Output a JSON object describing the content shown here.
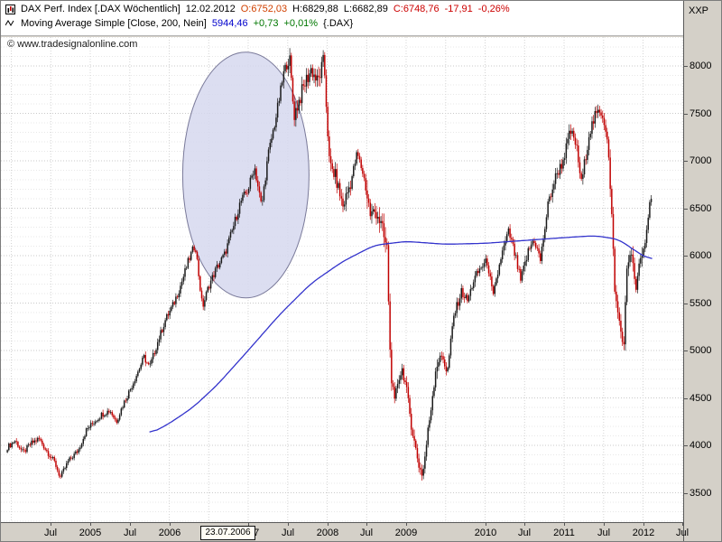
{
  "header": {
    "line1": {
      "title": "DAX Perf. Index [.DAX  Wöchentlich]",
      "date": "12.02.2012",
      "open": "O:6752,03",
      "high": "H:6829,88",
      "low": "L:6682,89",
      "close": "C:6748,76",
      "change_abs": "-17,91",
      "change_pct": "-0,26%"
    },
    "line2": {
      "title": "Moving Average Simple [Close, 200, Nein]",
      "value": "5944,46",
      "change_abs": "+0,73",
      "change_pct": "+0,01%",
      "suffix": "{.DAX}"
    },
    "copyright": "© www.tradesignalonline.com"
  },
  "colors": {
    "candle_up": "#1a1a1a",
    "candle_down": "#c00000",
    "ma_line": "#3333cc",
    "ellipse_fill": "#d6d8ee",
    "ellipse_stroke": "#7a7a9a",
    "open": "#d04000",
    "negative": "#cc0000",
    "positive": "#007700",
    "ma_value": "#0000cc",
    "grid_minor": "#e7e7e7",
    "grid_major": "#c9c9c9",
    "grid_vertical": "#d4d4d4"
  },
  "chart_data": {
    "type": "candlestick",
    "title": "DAX Perf. Index, weekly (.DAX Wöchentlich)",
    "unit_label": "XXP",
    "y_range": [
      3500,
      8000
    ],
    "grid": true,
    "last_bar": {
      "date": "12.02.2012",
      "open": 6752.03,
      "high": 6829.88,
      "low": 6682.89,
      "close": 6748.76,
      "change": -17.91,
      "change_pct": -0.26
    },
    "y_ticks": [
      8000,
      7500,
      7000,
      6500,
      6000,
      5500,
      5000,
      4500,
      4000,
      3500
    ],
    "x_ticks": [
      {
        "label": "Jul",
        "t": 2004.5
      },
      {
        "label": "2005",
        "t": 2005.0
      },
      {
        "label": "Jul",
        "t": 2005.5
      },
      {
        "label": "2006",
        "t": 2006.0
      },
      {
        "label": "2007",
        "t": 2007.0
      },
      {
        "label": "Jul",
        "t": 2007.5
      },
      {
        "label": "2008",
        "t": 2008.0
      },
      {
        "label": "Jul",
        "t": 2008.5
      },
      {
        "label": "2009",
        "t": 2009.0
      },
      {
        "label": "2010",
        "t": 2010.0
      },
      {
        "label": "Jul",
        "t": 2010.5
      },
      {
        "label": "2011",
        "t": 2011.0
      },
      {
        "label": "Jul",
        "t": 2011.5
      },
      {
        "label": "2012",
        "t": 2012.0
      },
      {
        "label": "Jul",
        "t": 2012.5
      }
    ],
    "date_marker": {
      "label": "23.07.2006",
      "t": 2006.56
    },
    "annotation_ellipse": {
      "t_center": 2006.97,
      "value_center": 6850,
      "t_radius": 0.8,
      "value_radius": 1295
    },
    "price_anchors": [
      [
        2003.95,
        3980
      ],
      [
        2004.05,
        4050
      ],
      [
        2004.15,
        3920
      ],
      [
        2004.25,
        4020
      ],
      [
        2004.35,
        4070
      ],
      [
        2004.45,
        3940
      ],
      [
        2004.55,
        3820
      ],
      [
        2004.62,
        3660
      ],
      [
        2004.72,
        3830
      ],
      [
        2004.85,
        3950
      ],
      [
        2004.95,
        4160
      ],
      [
        2005.05,
        4250
      ],
      [
        2005.15,
        4330
      ],
      [
        2005.25,
        4370
      ],
      [
        2005.33,
        4250
      ],
      [
        2005.42,
        4440
      ],
      [
        2005.5,
        4580
      ],
      [
        2005.6,
        4770
      ],
      [
        2005.68,
        4930
      ],
      [
        2005.75,
        4820
      ],
      [
        2005.85,
        5080
      ],
      [
        2005.95,
        5320
      ],
      [
        2006.05,
        5480
      ],
      [
        2006.15,
        5700
      ],
      [
        2006.25,
        5960
      ],
      [
        2006.33,
        6120
      ],
      [
        2006.42,
        5450
      ],
      [
        2006.5,
        5680
      ],
      [
        2006.6,
        5870
      ],
      [
        2006.7,
        6010
      ],
      [
        2006.8,
        6270
      ],
      [
        2006.9,
        6560
      ],
      [
        2007.0,
        6700
      ],
      [
        2007.08,
        6940
      ],
      [
        2007.17,
        6510
      ],
      [
        2007.25,
        7050
      ],
      [
        2007.35,
        7450
      ],
      [
        2007.45,
        7920
      ],
      [
        2007.52,
        8110
      ],
      [
        2007.58,
        7480
      ],
      [
        2007.65,
        7650
      ],
      [
        2007.72,
        7820
      ],
      [
        2007.8,
        7970
      ],
      [
        2007.88,
        7820
      ],
      [
        2007.96,
        8060
      ],
      [
        2008.03,
        6950
      ],
      [
        2008.1,
        6850
      ],
      [
        2008.2,
        6520
      ],
      [
        2008.3,
        6780
      ],
      [
        2008.38,
        7080
      ],
      [
        2008.46,
        6850
      ],
      [
        2008.55,
        6420
      ],
      [
        2008.63,
        6480
      ],
      [
        2008.7,
        6250
      ],
      [
        2008.76,
        6050
      ],
      [
        2008.8,
        4870
      ],
      [
        2008.85,
        4400
      ],
      [
        2008.9,
        4720
      ],
      [
        2008.96,
        4810
      ],
      [
        2009.03,
        4420
      ],
      [
        2009.1,
        4050
      ],
      [
        2009.17,
        3760
      ],
      [
        2009.21,
        3690
      ],
      [
        2009.3,
        4300
      ],
      [
        2009.38,
        4850
      ],
      [
        2009.46,
        4950
      ],
      [
        2009.52,
        4750
      ],
      [
        2009.6,
        5350
      ],
      [
        2009.7,
        5620
      ],
      [
        2009.78,
        5520
      ],
      [
        2009.85,
        5730
      ],
      [
        2009.95,
        5880
      ],
      [
        2010.03,
        5940
      ],
      [
        2010.1,
        5550
      ],
      [
        2010.2,
        5980
      ],
      [
        2010.3,
        6250
      ],
      [
        2010.38,
        6000
      ],
      [
        2010.45,
        5730
      ],
      [
        2010.55,
        6050
      ],
      [
        2010.62,
        6180
      ],
      [
        2010.7,
        5950
      ],
      [
        2010.8,
        6550
      ],
      [
        2010.9,
        6850
      ],
      [
        2010.98,
        6980
      ],
      [
        2011.08,
        7310
      ],
      [
        2011.15,
        7180
      ],
      [
        2011.22,
        6760
      ],
      [
        2011.32,
        7300
      ],
      [
        2011.4,
        7480
      ],
      [
        2011.48,
        7520
      ],
      [
        2011.55,
        7250
      ],
      [
        2011.6,
        6450
      ],
      [
        2011.65,
        5540
      ],
      [
        2011.72,
        5200
      ],
      [
        2011.75,
        5000
      ],
      [
        2011.8,
        5870
      ],
      [
        2011.85,
        6100
      ],
      [
        2011.9,
        5620
      ],
      [
        2011.96,
        5900
      ],
      [
        2012.02,
        6100
      ],
      [
        2012.07,
        6450
      ],
      [
        2012.12,
        6750
      ]
    ],
    "ma": {
      "name": "Moving Average Simple (Close, 200)",
      "last_value": 5944.46,
      "anchors": [
        [
          2005.75,
          4120
        ],
        [
          2006.0,
          4230
        ],
        [
          2006.3,
          4400
        ],
        [
          2006.6,
          4630
        ],
        [
          2007.0,
          5000
        ],
        [
          2007.4,
          5380
        ],
        [
          2007.8,
          5710
        ],
        [
          2008.2,
          5940
        ],
        [
          2008.6,
          6110
        ],
        [
          2009.0,
          6150
        ],
        [
          2009.5,
          6120
        ],
        [
          2010.0,
          6130
        ],
        [
          2010.5,
          6160
        ],
        [
          2011.0,
          6190
        ],
        [
          2011.4,
          6210
        ],
        [
          2011.7,
          6170
        ],
        [
          2011.9,
          6050
        ],
        [
          2012.12,
          5944
        ]
      ]
    }
  }
}
